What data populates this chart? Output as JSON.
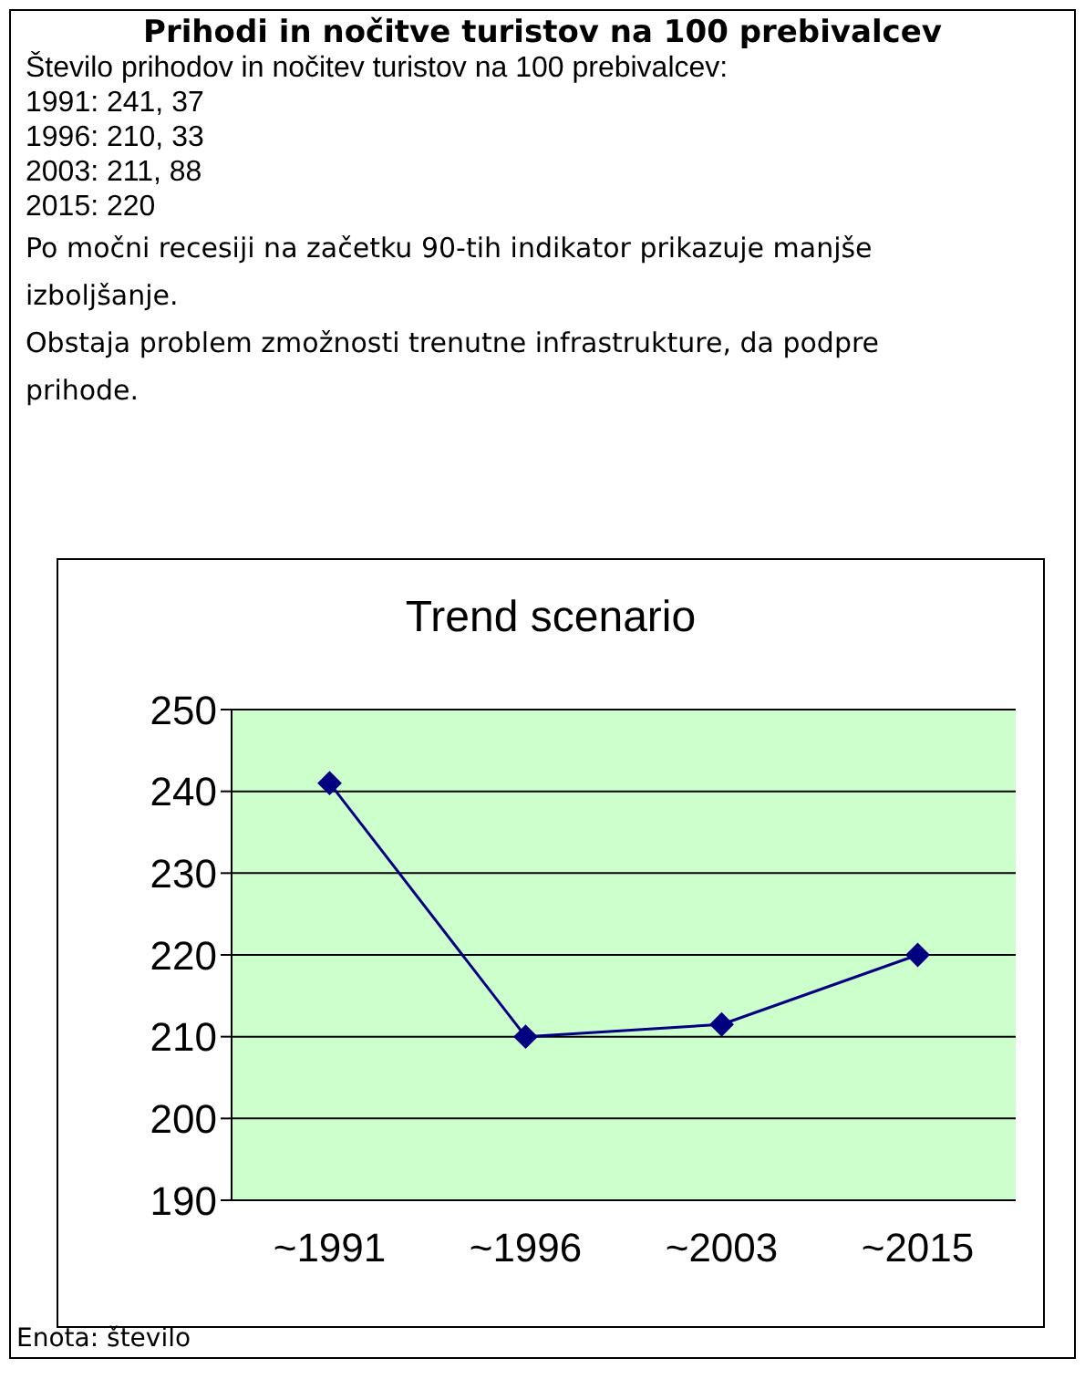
{
  "chart_data": {
    "type": "line",
    "title": "Trend scenario",
    "subtitle": "Prihodi in nočitve turistov na 100 prebivalcev",
    "annotations": [
      "Število prihodov in nočitev turistov na 100 prebivalcev:",
      "1991: 241, 37",
      "1996: 210, 33",
      "2003: 211, 88",
      "2015: 220",
      "Po močni recesiji na začetku 90-tih indikator prikazuje manjše izboljšanje.",
      "Obstaja problem zmožnosti trenutne infrastrukture, da podpre prihode.",
      "Enota: število"
    ],
    "categories": [
      "~1991",
      "~1996",
      "~2003",
      "~2015"
    ],
    "series": [
      {
        "color": "#000080",
        "values": [
          241,
          210,
          211.5,
          220
        ]
      }
    ],
    "ylim": [
      190,
      250
    ],
    "yticks": [
      190,
      200,
      210,
      220,
      230,
      240,
      250
    ],
    "grid": "y",
    "marker": "diamond",
    "line_style": "solid",
    "legend": false
  }
}
